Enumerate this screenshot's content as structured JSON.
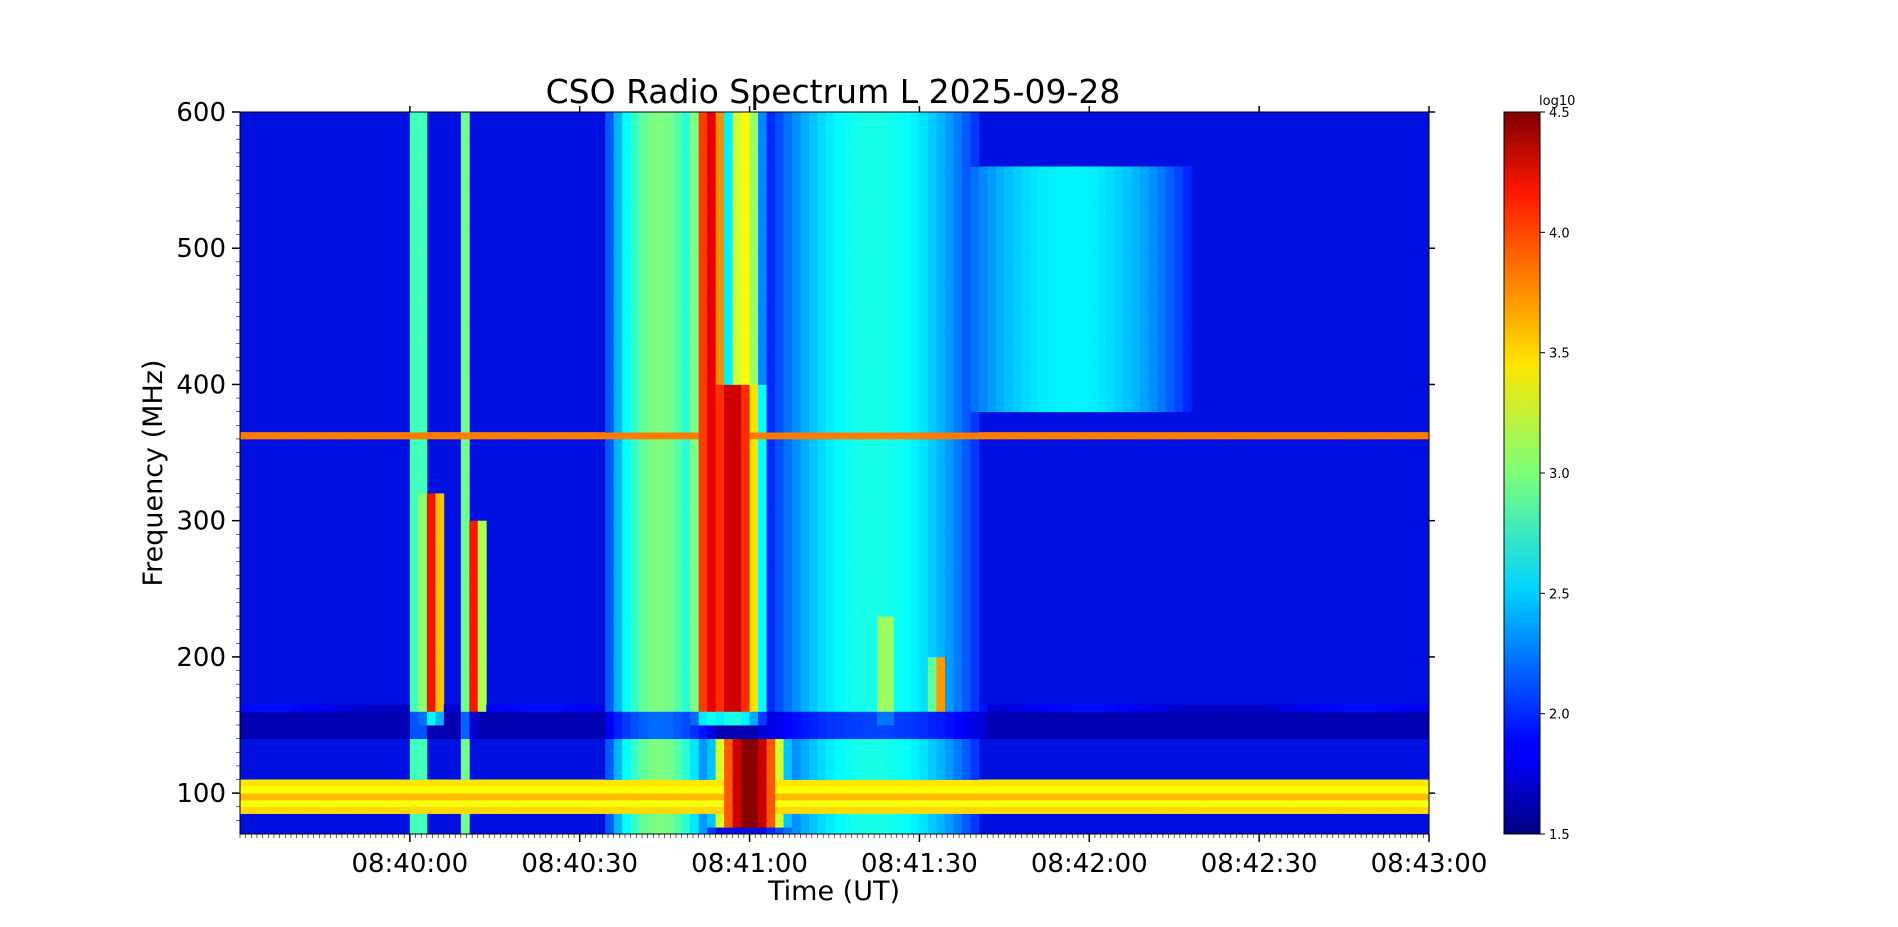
{
  "chart_data": {
    "type": "heatmap",
    "title": "CSO Radio Spectrum L 2025-09-28",
    "xlabel": "Time (UT)",
    "ylabel": "Frequency (MHz)",
    "x_ticks": [
      "08:40:00",
      "08:40:30",
      "08:41:00",
      "08:41:30",
      "08:42:00",
      "08:42:30",
      "08:43:00"
    ],
    "x_tick_seconds": [
      0,
      30,
      60,
      90,
      120,
      150,
      180
    ],
    "xlim_seconds": [
      -30,
      180
    ],
    "y_ticks": [
      100,
      200,
      300,
      400,
      500,
      600
    ],
    "ylim": [
      70,
      600
    ],
    "colorbar": {
      "label": "log10",
      "ticks": [
        "1.5",
        "2.0",
        "2.5",
        "3.0",
        "3.5",
        "4.0",
        "4.5"
      ],
      "tick_values": [
        1.5,
        2.0,
        2.5,
        3.0,
        3.5,
        4.0,
        4.5
      ],
      "range": [
        1.5,
        4.5
      ],
      "colormap": "jet"
    },
    "background_level": 1.8,
    "events": [
      {
        "t_start": 0,
        "t_end": 3,
        "f_low": 70,
        "f_high": 600,
        "peak": 3.0
      },
      {
        "t_start": 2,
        "t_end": 6,
        "f_low": 150,
        "f_high": 320,
        "peak": 4.1
      },
      {
        "t_start": 9,
        "t_end": 11,
        "f_low": 70,
        "f_high": 600,
        "peak": 3.0
      },
      {
        "t_start": 10,
        "t_end": 13,
        "f_low": 160,
        "f_high": 300,
        "peak": 4.1
      },
      {
        "t_start": 36,
        "t_end": 52,
        "f_low": 70,
        "f_high": 600,
        "peak": 3.0
      },
      {
        "t_start": 50,
        "t_end": 56,
        "f_low": 150,
        "f_high": 600,
        "peak": 4.2
      },
      {
        "t_start": 52,
        "t_end": 62,
        "f_low": 150,
        "f_high": 400,
        "peak": 4.3
      },
      {
        "t_start": 54,
        "t_end": 66,
        "f_low": 75,
        "f_high": 140,
        "peak": 4.5
      },
      {
        "t_start": 56,
        "t_end": 62,
        "f_low": 400,
        "f_high": 600,
        "peak": 3.4
      },
      {
        "t_start": 66,
        "t_end": 98,
        "f_low": 70,
        "f_high": 600,
        "peak": 2.7
      },
      {
        "t_start": 82,
        "t_end": 86,
        "f_low": 150,
        "f_high": 230,
        "peak": 3.2
      },
      {
        "t_start": 92,
        "t_end": 95,
        "f_low": 160,
        "f_high": 200,
        "peak": 3.7
      },
      {
        "t_start": 98,
        "t_end": 135,
        "f_low": 380,
        "f_high": 560,
        "peak": 2.6
      }
    ],
    "steady_bands_mhz": [
      {
        "f_low": 85,
        "f_high": 110,
        "level": 3.6
      },
      {
        "f_low": 360,
        "f_high": 364,
        "level": 4.0
      }
    ],
    "quiet_band_mhz": [
      140,
      160
    ]
  }
}
